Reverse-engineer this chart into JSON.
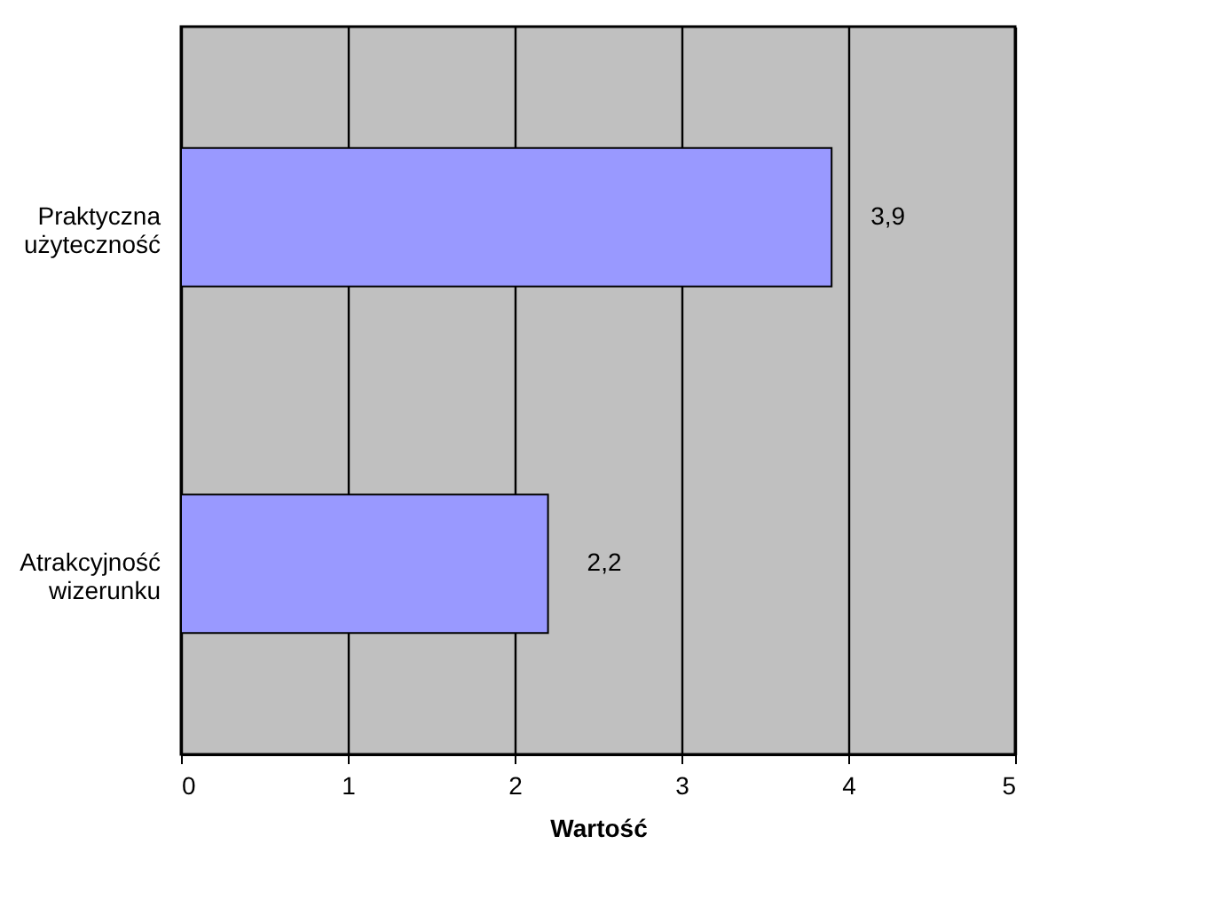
{
  "chart_data": {
    "type": "bar",
    "orientation": "horizontal",
    "xlabel": "Wartość",
    "categories": [
      "Praktyczna użyteczność",
      "Atrakcyjność wizerunku"
    ],
    "values": [
      3.9,
      2.2
    ],
    "color": "#9999ff",
    "value_labels": [
      "3,9",
      "2,2"
    ],
    "xlim": [
      0,
      5
    ],
    "xticks": [
      0,
      1,
      2,
      3,
      4,
      5
    ],
    "grid": "x"
  }
}
